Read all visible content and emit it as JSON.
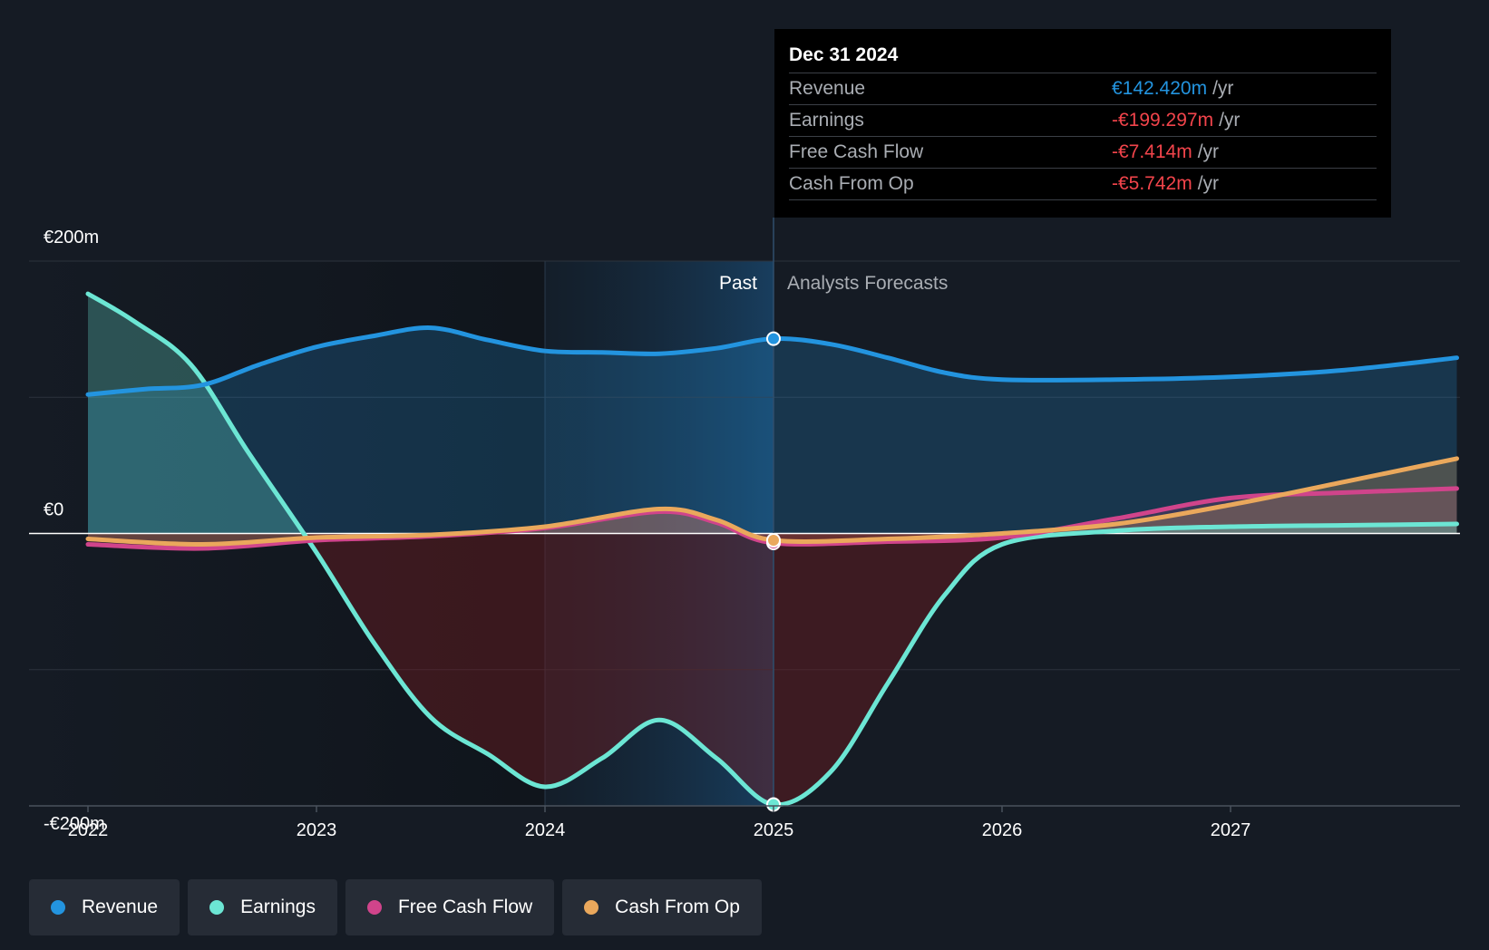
{
  "colors": {
    "background": "#151b24",
    "revenue": "#2394df",
    "earnings": "#6ce6d4",
    "free_cash_flow": "#d0448b",
    "cash_from_op": "#eaa85c",
    "negative_value": "#f2444b"
  },
  "tooltip": {
    "date": "Dec 31 2024",
    "unit": "/yr",
    "rows": [
      {
        "label": "Revenue",
        "value": "€142.420m"
      },
      {
        "label": "Earnings",
        "value": "-€199.297m"
      },
      {
        "label": "Free Cash Flow",
        "value": "-€7.414m"
      },
      {
        "label": "Cash From Op",
        "value": "-€5.742m"
      }
    ]
  },
  "chart_data": {
    "type": "line",
    "ylim": [
      -200,
      200
    ],
    "xlim": [
      2021.75,
      2027.99
    ],
    "y_tick_labels": [
      {
        "value": 200,
        "label": "€200m"
      },
      {
        "value": 0,
        "label": "€0"
      },
      {
        "value": -200,
        "label": "-€200m"
      }
    ],
    "x_tick_labels": [
      "2022",
      "2023",
      "2024",
      "2025",
      "2026",
      "2027"
    ],
    "x_ticks": [
      2022,
      2023,
      2024,
      2025,
      2026,
      2027
    ],
    "past_label": "Past",
    "forecast_label": "Analysts Forecasts",
    "past_end": 2025.0,
    "highlight_start": 2024.0,
    "grid": true,
    "legend_position": "bottom-left",
    "series": [
      {
        "name": "Revenue",
        "x": [
          2022.0,
          2022.25,
          2022.5,
          2022.75,
          2023.0,
          2023.25,
          2023.5,
          2023.75,
          2024.0,
          2024.25,
          2024.5,
          2024.75,
          2025.0,
          2025.25,
          2025.5,
          2025.75,
          2026.0,
          2026.5,
          2027.0,
          2027.5,
          2027.99
        ],
        "y": [
          102,
          106,
          109,
          124,
          137,
          145,
          151,
          142,
          134,
          133,
          132,
          136,
          143,
          139,
          129,
          118,
          113,
          113,
          115,
          120,
          129
        ]
      },
      {
        "name": "Earnings",
        "x": [
          2022.0,
          2022.2,
          2022.45,
          2022.7,
          2023.0,
          2023.25,
          2023.5,
          2023.75,
          2024.0,
          2024.25,
          2024.5,
          2024.75,
          2025.0,
          2025.25,
          2025.5,
          2025.75,
          2026.0,
          2026.5,
          2027.0,
          2027.5,
          2027.99
        ],
        "y": [
          176,
          156,
          124,
          60,
          -14,
          -80,
          -135,
          -162,
          -186,
          -165,
          -137,
          -165,
          -199,
          -175,
          -110,
          -45,
          -8,
          2,
          5,
          6,
          7
        ]
      },
      {
        "name": "Free Cash Flow",
        "x": [
          2022.0,
          2022.5,
          2023.0,
          2023.5,
          2024.0,
          2024.5,
          2024.75,
          2025.0,
          2025.5,
          2026.0,
          2026.5,
          2027.0,
          2027.5,
          2027.99
        ],
        "y": [
          -8,
          -11,
          -5,
          -2,
          4,
          16,
          8,
          -7,
          -6,
          -3,
          11,
          26,
          30,
          33
        ]
      },
      {
        "name": "Cash From Op",
        "x": [
          2022.0,
          2022.5,
          2023.0,
          2023.5,
          2024.0,
          2024.5,
          2024.75,
          2025.0,
          2025.5,
          2026.0,
          2026.5,
          2027.0,
          2027.5,
          2027.99
        ],
        "y": [
          -4,
          -8,
          -3,
          -1,
          5,
          18,
          10,
          -5,
          -4,
          0,
          7,
          21,
          38,
          55
        ]
      }
    ]
  },
  "legend": [
    {
      "label": "Revenue"
    },
    {
      "label": "Earnings"
    },
    {
      "label": "Free Cash Flow"
    },
    {
      "label": "Cash From Op"
    }
  ]
}
